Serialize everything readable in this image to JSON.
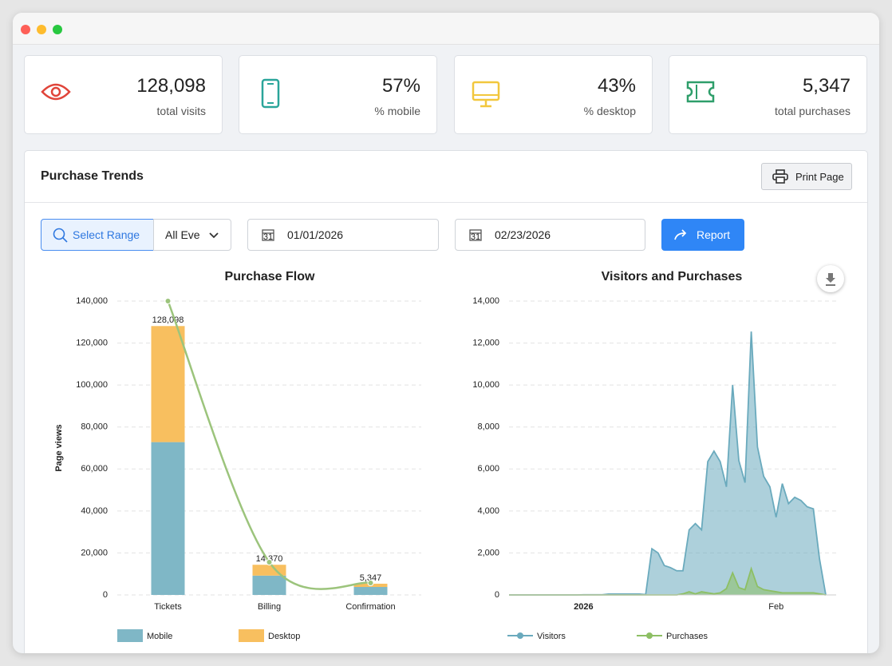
{
  "stats": [
    {
      "value": "128,098",
      "label": "total visits"
    },
    {
      "value": "57%",
      "label": "% mobile"
    },
    {
      "value": "43%",
      "label": "% desktop"
    },
    {
      "value": "5,347",
      "label": "total purchases"
    }
  ],
  "panel": {
    "title": "Purchase Trends",
    "print": "Print Page"
  },
  "filters": {
    "select_range": "Select Range",
    "event": "All Eve",
    "start": "01/01/2026",
    "end": "02/23/2026",
    "report": "Report"
  },
  "chart_data": [
    {
      "type": "bar",
      "stacked": true,
      "title": "Purchase Flow",
      "y_label": "Page views",
      "categories": [
        "Tickets",
        "Billing",
        "Confirmation"
      ],
      "series": [
        {
          "name": "Mobile",
          "color": "#7fb7c6",
          "values": [
            72800,
            9200,
            3800
          ]
        },
        {
          "name": "Desktop",
          "color": "#f8bf5f",
          "values": [
            55298,
            5170,
            1547
          ]
        }
      ],
      "totals": [
        128098,
        14370,
        5347
      ],
      "total_labels": [
        "128,098",
        "14,370",
        "5,347"
      ],
      "line": {
        "color": "#9cc47c",
        "values": [
          140000,
          15600,
          5700
        ]
      },
      "ylim": [
        0,
        140000
      ],
      "yticks": [
        0,
        {
          "value": 20000,
          "label": "20,000"
        },
        {
          "value": 40000,
          "label": "40,000"
        },
        {
          "value": 60000,
          "label": "60,000"
        },
        {
          "value": 80000,
          "label": "80,000"
        },
        {
          "value": 100000,
          "label": "100,000"
        },
        {
          "value": 120000,
          "label": "120,000"
        },
        {
          "value": 140000,
          "label": "140,000"
        }
      ],
      "grid": true
    },
    {
      "type": "area",
      "title": "Visitors and Purchases",
      "x": [
        null,
        null,
        null,
        null,
        null,
        null,
        null,
        null,
        null,
        null,
        null,
        null,
        "2026",
        null,
        null,
        null,
        null,
        null,
        null,
        null,
        null,
        null,
        null,
        null,
        null,
        null,
        null,
        null,
        null,
        null,
        null,
        null,
        null,
        null,
        null,
        null,
        null,
        null,
        null,
        null,
        null,
        null,
        null,
        "Feb",
        null,
        null,
        null,
        null,
        null,
        null,
        null,
        null
      ],
      "series": [
        {
          "name": "Visitors",
          "color": "#6aaabd",
          "values": [
            0,
            0,
            0,
            0,
            0,
            0,
            0,
            0,
            0,
            0,
            0,
            0,
            10,
            10,
            10,
            10,
            40,
            40,
            40,
            40,
            40,
            40,
            20,
            2200,
            2000,
            1400,
            1300,
            1150,
            1150,
            3100,
            3400,
            3100,
            6350,
            6850,
            6350,
            5150,
            10000,
            6400,
            5350,
            12550,
            7050,
            5650,
            5150,
            3700,
            5300,
            4350,
            4650,
            4500,
            4200,
            4100,
            1700,
            0
          ]
        },
        {
          "name": "Purchases",
          "color": "#8dbf64",
          "values": [
            0,
            0,
            0,
            0,
            0,
            0,
            0,
            0,
            0,
            0,
            0,
            0,
            0,
            0,
            0,
            0,
            0,
            0,
            0,
            0,
            0,
            0,
            0,
            0,
            0,
            0,
            0,
            0,
            50,
            150,
            50,
            150,
            100,
            50,
            100,
            300,
            1050,
            350,
            250,
            1250,
            400,
            250,
            200,
            150,
            100,
            100,
            100,
            100,
            100,
            100,
            50,
            0
          ]
        }
      ],
      "ylim": [
        0,
        14000
      ],
      "yticks": [
        0,
        {
          "value": 2000,
          "label": "2,000"
        },
        {
          "value": 4000,
          "label": "4,000"
        },
        {
          "value": 6000,
          "label": "6,000"
        },
        {
          "value": 8000,
          "label": "8,000"
        },
        {
          "value": 10000,
          "label": "10,000"
        },
        {
          "value": 12000,
          "label": "12,000"
        },
        {
          "value": 14000,
          "label": "14,000"
        }
      ],
      "grid": true
    }
  ]
}
